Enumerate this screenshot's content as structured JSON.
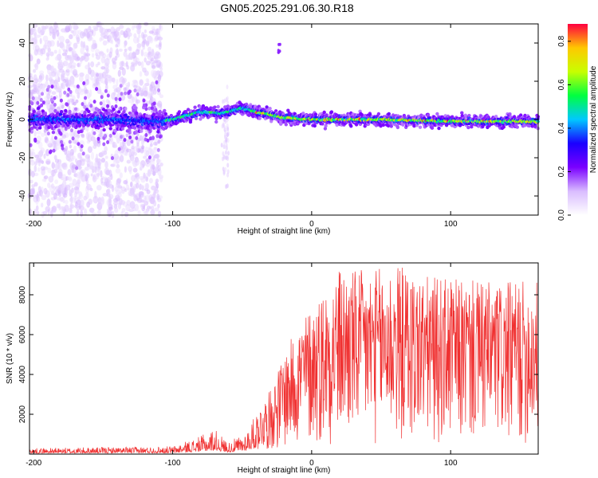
{
  "title": "GN05.2025.291.06.30.R18",
  "chart_data": [
    {
      "type": "heatmap",
      "xlabel": "Height of straight line (km)",
      "ylabel": "Frequency (Hz)",
      "xlim": [
        -203,
        163
      ],
      "ylim": [
        -50,
        50
      ],
      "x_ticks": [
        -200,
        -100,
        0,
        100
      ],
      "y_ticks": [
        -40,
        -20,
        0,
        20,
        40
      ],
      "colorbar": {
        "label": "Normalized spectral amplitude",
        "range": [
          0.0,
          0.88
        ],
        "ticks": [
          0.0,
          0.2,
          0.4,
          0.6,
          0.8
        ],
        "colormap": [
          "#ffffff",
          "#d9bcff",
          "#7a00ff",
          "#1a00ff",
          "#00c8ff",
          "#00ff40",
          "#c8ff00",
          "#ffc800",
          "#ff0040"
        ]
      },
      "ridge": {
        "description_points_x": [
          -200,
          -150,
          -110,
          -100,
          -80,
          -65,
          -50,
          -40,
          -20,
          0,
          50,
          100,
          160
        ],
        "description_points_y": [
          0,
          0,
          -1,
          0,
          4,
          3,
          6,
          4,
          1,
          0,
          0,
          -1,
          -1
        ]
      },
      "grid": false
    },
    {
      "type": "line",
      "xlabel": "Height of straight line (km)",
      "ylabel": "SNR (10 * v/v)",
      "xlim": [
        -203,
        163
      ],
      "ylim": [
        0,
        9600
      ],
      "x_ticks": [
        -200,
        -100,
        0,
        100
      ],
      "y_ticks": [
        2000,
        4000,
        6000,
        8000
      ],
      "series_color": "#f03030",
      "envelope": {
        "x": [
          -203,
          -150,
          -100,
          -80,
          -70,
          -60,
          -50,
          -40,
          -30,
          -20,
          -10,
          0,
          20,
          40,
          60,
          80,
          100,
          120,
          140,
          163
        ],
        "y_max": [
          300,
          350,
          400,
          900,
          1300,
          600,
          1000,
          2000,
          3200,
          5000,
          6500,
          7500,
          9400,
          9200,
          9600,
          9000,
          8800,
          8700,
          8600,
          8800
        ]
      },
      "grid": false
    }
  ]
}
